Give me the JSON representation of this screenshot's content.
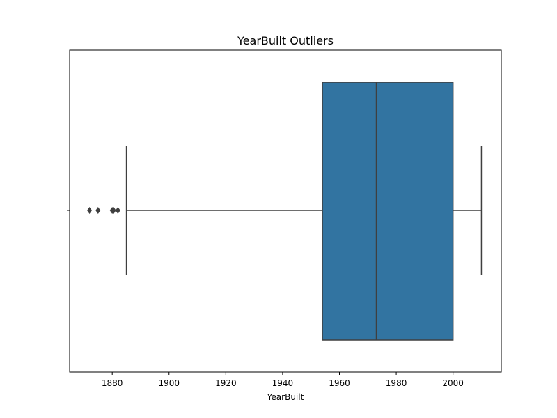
{
  "chart_data": {
    "type": "box",
    "title": "YearBuilt Outliers",
    "xlabel": "YearBuilt",
    "ylabel": "",
    "orientation": "horizontal",
    "xlim": [
      1865,
      2017
    ],
    "x_ticks": [
      1880,
      1900,
      1920,
      1940,
      1960,
      1980,
      2000
    ],
    "grid": false,
    "box": {
      "whisker_low": 1885,
      "q1": 1954,
      "median": 1973,
      "q3": 2000,
      "whisker_high": 2010
    },
    "outliers": [
      1872,
      1875,
      1880,
      1880.5,
      1882
    ],
    "colors": {
      "box_fill": "#3274a1",
      "line": "#3f3f3f",
      "outlier": "#3f3f3f"
    }
  }
}
